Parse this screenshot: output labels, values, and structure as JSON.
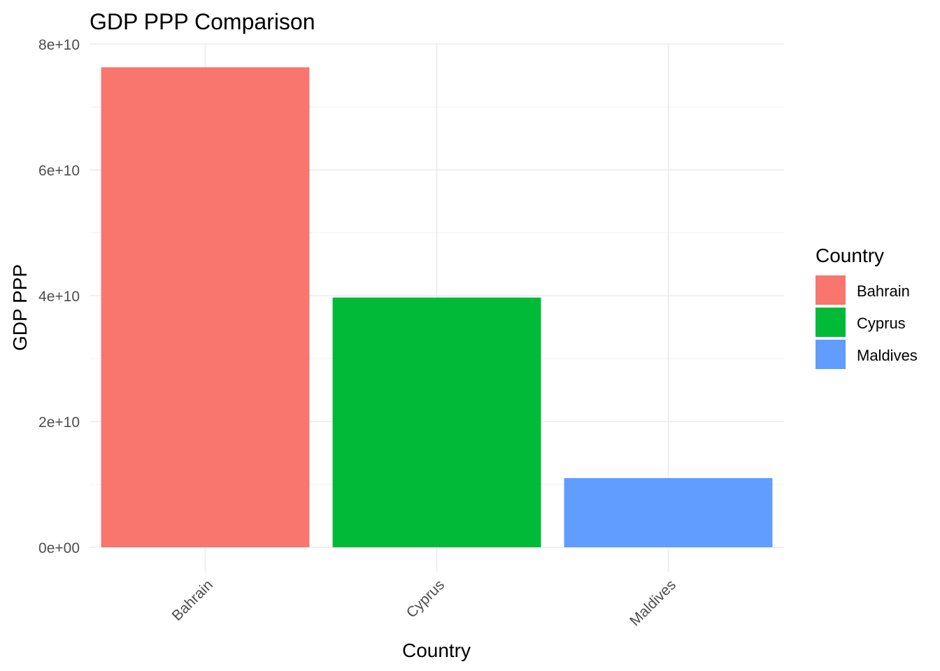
{
  "chart_data": {
    "type": "bar",
    "title": "GDP PPP Comparison",
    "xlabel": "Country",
    "ylabel": "GDP PPP",
    "categories": [
      "Bahrain",
      "Cyprus",
      "Maldives"
    ],
    "values": [
      76300000000,
      39700000000,
      11000000000
    ],
    "colors": [
      "#F8766D",
      "#00BA38",
      "#619CFF"
    ],
    "ylim": [
      0,
      80000000000
    ],
    "yticks": [
      0,
      20000000000,
      40000000000,
      60000000000,
      80000000000
    ],
    "ytick_labels": [
      "0e+00",
      "2e+10",
      "4e+10",
      "6e+10",
      "8e+10"
    ],
    "grid": true,
    "legend": {
      "title": "Country",
      "position": "right",
      "entries": [
        "Bahrain",
        "Cyprus",
        "Maldives"
      ]
    }
  }
}
